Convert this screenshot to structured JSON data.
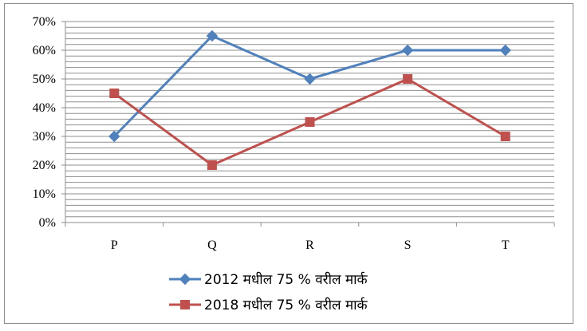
{
  "chart_data": {
    "type": "line",
    "title": "",
    "xlabel": "",
    "ylabel": "",
    "categories": [
      "P",
      "Q",
      "R",
      "S",
      "T"
    ],
    "y_ticks": [
      "0%",
      "10%",
      "20%",
      "30%",
      "40%",
      "50%",
      "60%",
      "70%"
    ],
    "ylim": [
      0,
      70
    ],
    "y_unit": "%",
    "grid": true,
    "legend_position": "bottom",
    "series": [
      {
        "name": "2012 मधील 75 % वरील मार्क",
        "values": [
          30,
          65,
          50,
          60,
          60
        ],
        "color": "#4F81BD",
        "marker": "diamond"
      },
      {
        "name": "2018 मधील 75 % वरील मार्क",
        "values": [
          45,
          20,
          35,
          50,
          30
        ],
        "color": "#C0504D",
        "marker": "square"
      }
    ]
  }
}
